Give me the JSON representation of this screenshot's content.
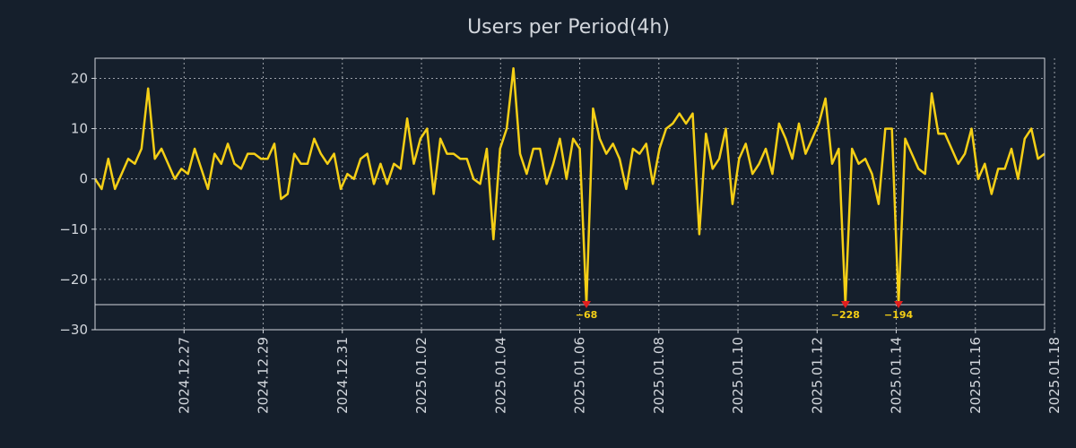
{
  "chart_data": {
    "type": "line",
    "title": "Users per Period(4h)",
    "xlabel": "",
    "ylabel": "",
    "ylim": [
      -30,
      24
    ],
    "xlim": [
      -0.5,
      23.5
    ],
    "grid": true,
    "floor_line": -25,
    "colors": {
      "line": "#f5cf16",
      "marker": "#e21f1f",
      "axis": "#d2d6dc",
      "background": "#151f2c"
    },
    "x_ticks": [
      {
        "pos": 1.75,
        "label": "2024.12.27"
      },
      {
        "pos": 3.75,
        "label": "2024.12.29"
      },
      {
        "pos": 5.75,
        "label": "2024.12.31"
      },
      {
        "pos": 7.75,
        "label": "2025.01.02"
      },
      {
        "pos": 9.75,
        "label": "2025.01.04"
      },
      {
        "pos": 11.75,
        "label": "2025.01.06"
      },
      {
        "pos": 13.75,
        "label": "2025.01.08"
      },
      {
        "pos": 15.75,
        "label": "2025.01.10"
      },
      {
        "pos": 17.75,
        "label": "2025.01.12"
      },
      {
        "pos": 19.75,
        "label": "2025.01.14"
      },
      {
        "pos": 21.75,
        "label": "2025.01.16"
      },
      {
        "pos": 23.75,
        "label": "2025.01.18"
      }
    ],
    "y_ticks": [
      20,
      10,
      0,
      -10,
      -20,
      -30
    ],
    "series": [
      {
        "name": "Users",
        "values": [
          0,
          -2,
          4,
          -2,
          1,
          4,
          3,
          6,
          18,
          4,
          6,
          3,
          0,
          2,
          1,
          6,
          2,
          -2,
          5,
          3,
          7,
          3,
          2,
          5,
          5,
          4,
          4,
          7,
          -4,
          -3,
          5,
          3,
          3,
          8,
          5,
          3,
          5,
          -2,
          1,
          0,
          4,
          5,
          -1,
          3,
          -1,
          3,
          2,
          12,
          3,
          8,
          10,
          -3,
          8,
          5,
          5,
          4,
          4,
          0,
          -1,
          6,
          -12,
          6,
          10,
          22,
          5,
          1,
          6,
          6,
          -1,
          3,
          8,
          0,
          8,
          6,
          -25,
          14,
          8,
          5,
          7,
          4,
          -2,
          6,
          5,
          7,
          -1,
          6,
          10,
          11,
          13,
          11,
          13,
          -11,
          9,
          2,
          4,
          10,
          -5,
          4,
          7,
          1,
          3,
          6,
          1,
          11,
          8,
          4,
          11,
          5,
          8,
          11,
          16,
          3,
          6,
          -25,
          6,
          3,
          4,
          1,
          -5,
          10,
          10,
          -25,
          8,
          5,
          2,
          1,
          17,
          9,
          9,
          6,
          3,
          5,
          10,
          0,
          3,
          -3,
          2,
          2,
          6,
          0,
          8,
          10,
          4,
          5
        ]
      }
    ],
    "annotations": [
      {
        "index": 74,
        "value": -25,
        "label": "-68"
      },
      {
        "index": 113,
        "value": -25,
        "label": "-228"
      },
      {
        "index": 121,
        "value": -25,
        "label": "-194"
      }
    ]
  }
}
